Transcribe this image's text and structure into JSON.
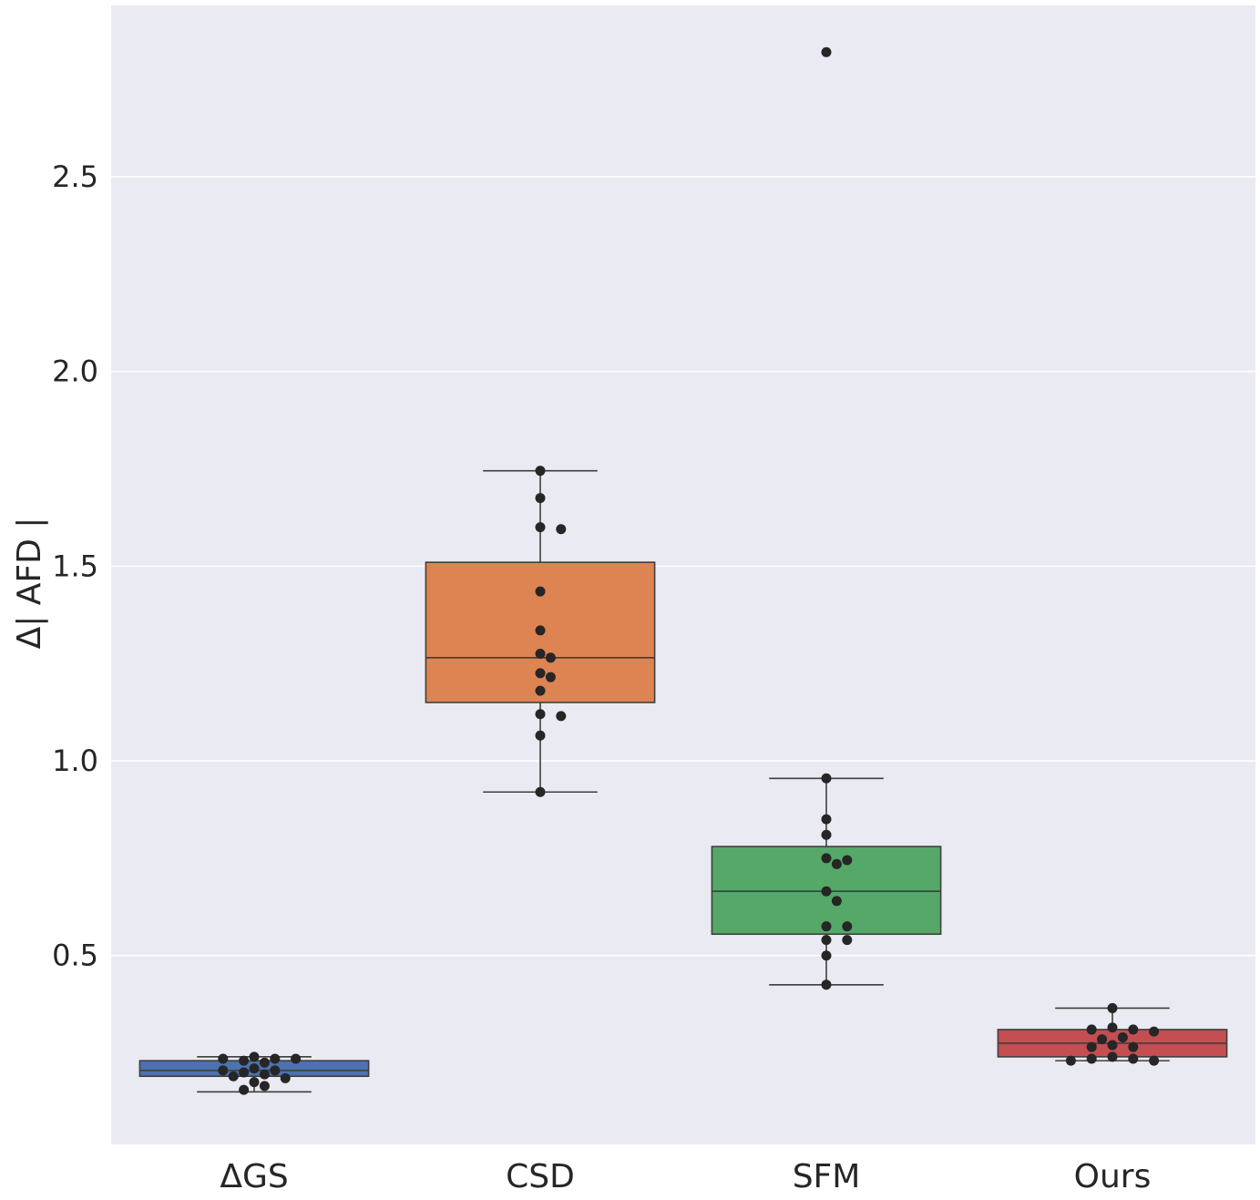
{
  "chart_data": {
    "type": "box",
    "title": "",
    "xlabel": "",
    "ylabel": "Δ| AFD |",
    "ylim": [
      0.015,
      2.94
    ],
    "yticks": [
      0.5,
      1.0,
      1.5,
      2.0,
      2.5
    ],
    "ytick_labels": [
      "0.5",
      "1.0",
      "1.5",
      "2.0",
      "2.5"
    ],
    "grid": true,
    "categories": [
      "ΔGS",
      "CSD",
      "SFM",
      "Ours"
    ],
    "colors": [
      "#4c72b0",
      "#dd8452",
      "#55a868",
      "#c44e52"
    ],
    "boxes": [
      {
        "name": "ΔGS",
        "whisker_low": 0.15,
        "q1": 0.19,
        "median": 0.205,
        "q3": 0.23,
        "whisker_high": 0.24
      },
      {
        "name": "CSD",
        "whisker_low": 0.92,
        "q1": 1.15,
        "median": 1.265,
        "q3": 1.51,
        "whisker_high": 1.745
      },
      {
        "name": "SFM",
        "whisker_low": 0.425,
        "q1": 0.555,
        "median": 0.665,
        "q3": 0.78,
        "whisker_high": 0.955
      },
      {
        "name": "Ours",
        "whisker_low": 0.23,
        "q1": 0.24,
        "median": 0.275,
        "q3": 0.31,
        "whisker_high": 0.365
      }
    ],
    "points": [
      [
        0.24,
        0.235,
        0.23,
        0.225,
        0.235,
        0.235,
        0.21,
        0.205,
        0.2,
        0.195,
        0.205,
        0.19,
        0.185,
        0.175,
        0.165,
        0.155
      ],
      [
        1.745,
        1.675,
        1.6,
        1.595,
        1.435,
        1.335,
        1.275,
        1.265,
        1.225,
        1.215,
        1.18,
        1.12,
        1.115,
        1.065,
        0.92
      ],
      [
        2.82,
        0.955,
        0.85,
        0.81,
        0.75,
        0.745,
        0.735,
        0.665,
        0.64,
        0.575,
        0.575,
        0.54,
        0.54,
        0.5,
        0.425
      ],
      [
        0.365,
        0.315,
        0.31,
        0.31,
        0.305,
        0.29,
        0.285,
        0.27,
        0.265,
        0.265,
        0.24,
        0.235,
        0.235,
        0.23,
        0.23
      ]
    ]
  }
}
